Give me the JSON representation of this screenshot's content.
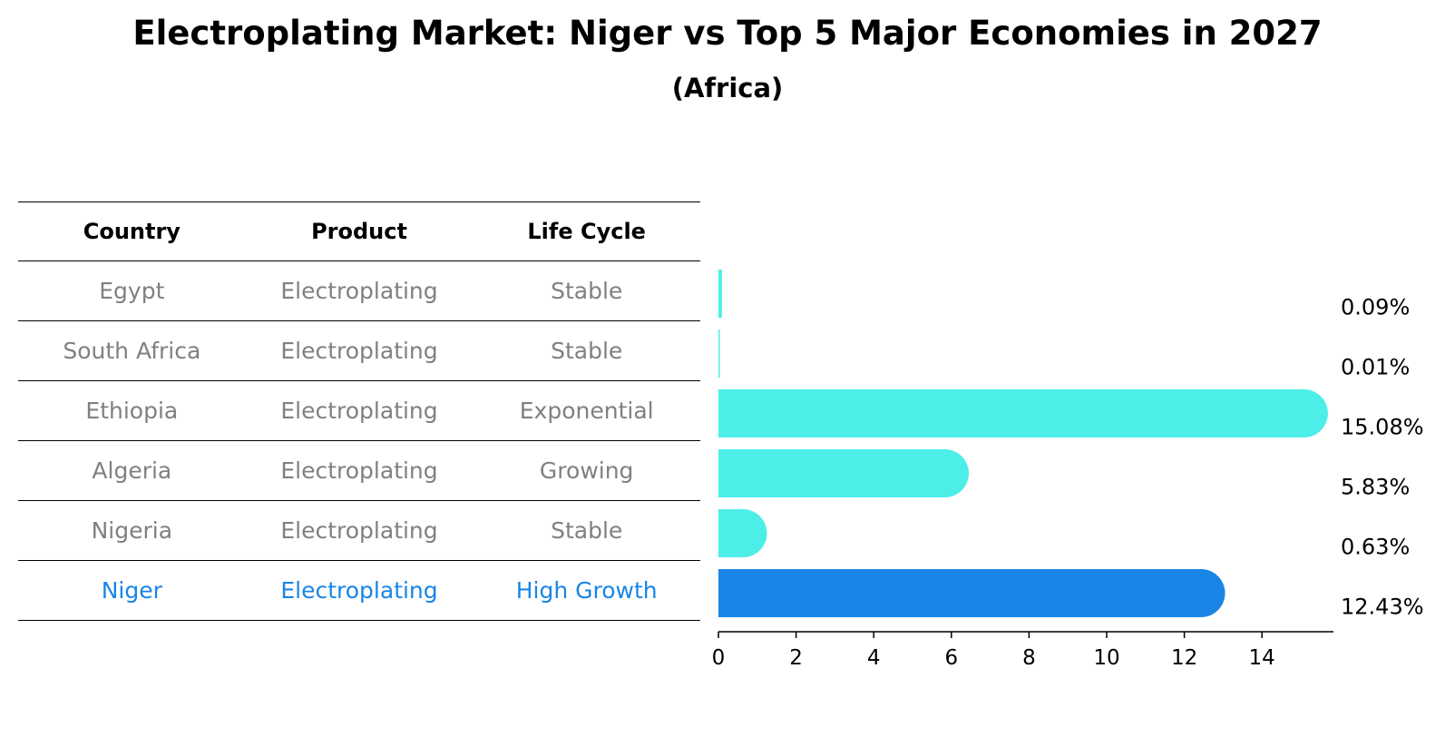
{
  "title": "Electroplating Market: Niger vs Top 5 Major Economies in 2027",
  "subtitle": "(Africa)",
  "table": {
    "headers": [
      "Country",
      "Product",
      "Life Cycle"
    ],
    "rows": [
      {
        "country": "Egypt",
        "product": "Electroplating",
        "life_cycle": "Stable"
      },
      {
        "country": "South Africa",
        "product": "Electroplating",
        "life_cycle": "Stable"
      },
      {
        "country": "Ethiopia",
        "product": "Electroplating",
        "life_cycle": "Exponential"
      },
      {
        "country": "Algeria",
        "product": "Electroplating",
        "life_cycle": "Growing"
      },
      {
        "country": "Nigeria",
        "product": "Electroplating",
        "life_cycle": "Stable"
      },
      {
        "country": "Niger",
        "product": "Electroplating",
        "life_cycle": "High Growth"
      }
    ]
  },
  "colors": {
    "bar": "#4deee8",
    "highlight": "#1985e6",
    "muted_text": "#808080"
  },
  "chart_data": {
    "type": "bar",
    "orientation": "horizontal",
    "categories": [
      "Egypt",
      "South Africa",
      "Ethiopia",
      "Algeria",
      "Nigeria",
      "Niger"
    ],
    "values": [
      0.09,
      0.01,
      15.08,
      5.83,
      0.63,
      12.43
    ],
    "value_labels": [
      "0.09%",
      "0.01%",
      "15.08%",
      "5.83%",
      "0.63%",
      "12.43%"
    ],
    "highlight": "Niger",
    "xlim": [
      0,
      15.8
    ],
    "xticks": [
      0,
      2,
      4,
      6,
      8,
      10,
      12,
      14
    ],
    "title": "Electroplating Market: Niger vs Top 5 Major Economies in 2027",
    "xlabel": "",
    "ylabel": ""
  }
}
